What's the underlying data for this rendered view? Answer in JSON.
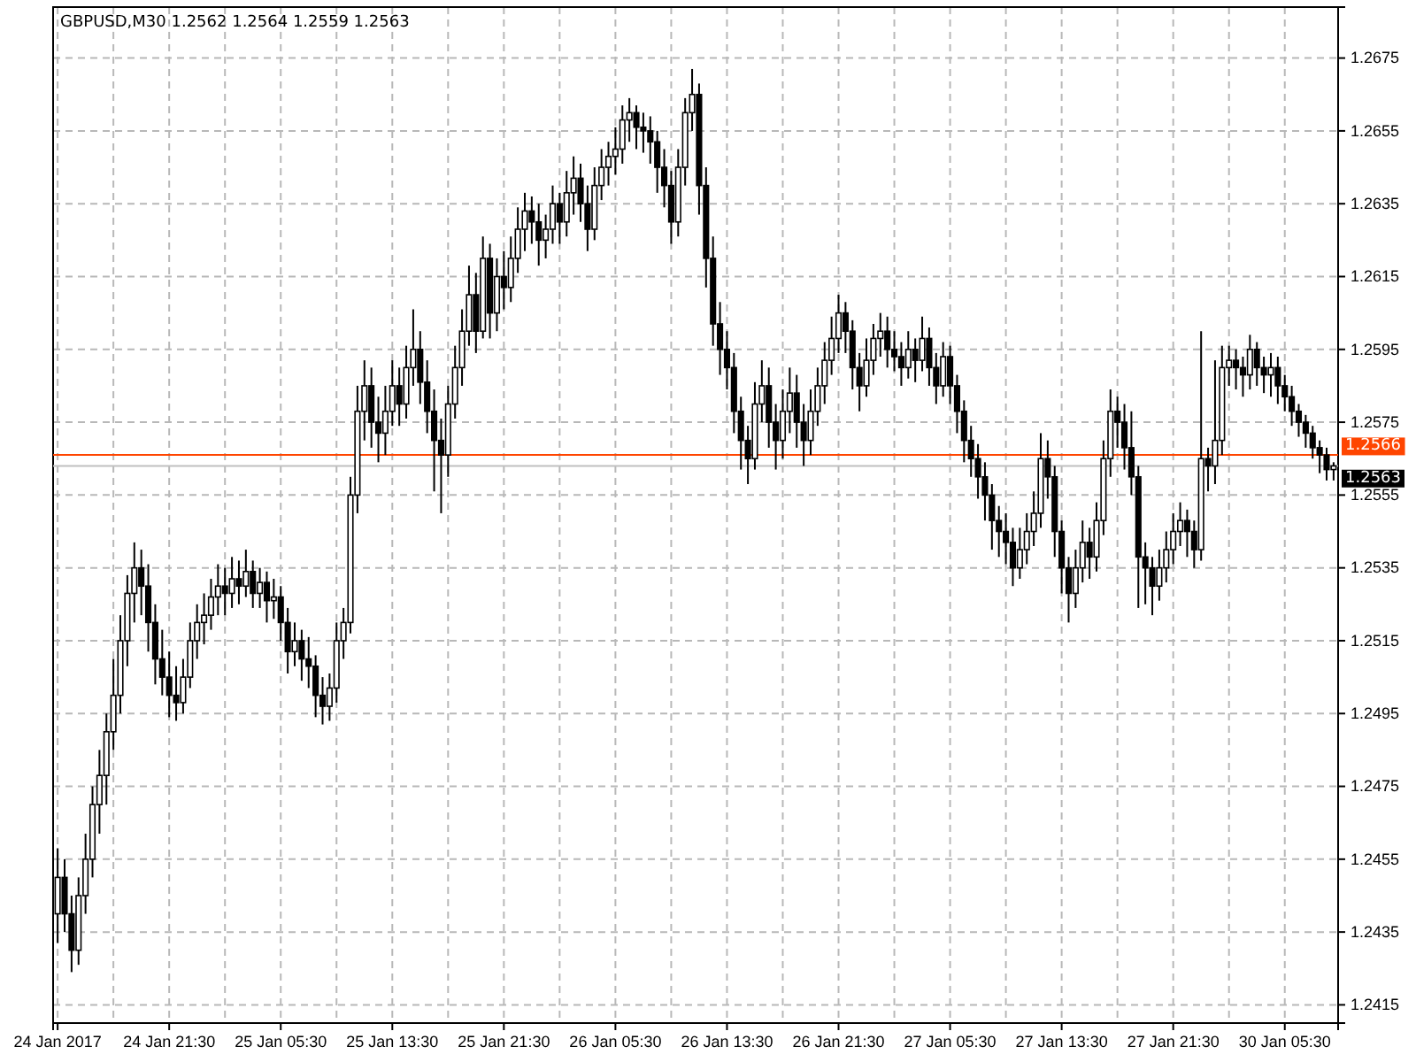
{
  "chart_data": {
    "type": "candlestick",
    "title": "GBPUSD,M30  1.2562 1.2564 1.2559 1.2563",
    "categories": [
      "24 Jan 2017",
      null,
      null,
      null,
      null,
      null,
      null,
      null,
      null,
      null,
      null,
      null,
      null,
      null,
      null,
      null,
      "24 Jan 21:30",
      null,
      null,
      null,
      null,
      null,
      null,
      null,
      null,
      null,
      null,
      null,
      null,
      null,
      null,
      null,
      "25 Jan 05:30",
      null,
      null,
      null,
      null,
      null,
      null,
      null,
      null,
      null,
      null,
      null,
      null,
      null,
      null,
      null,
      "25 Jan 13:30",
      null,
      null,
      null,
      null,
      null,
      null,
      null,
      null,
      null,
      null,
      null,
      null,
      null,
      null,
      null,
      "25 Jan 21:30",
      null,
      null,
      null,
      null,
      null,
      null,
      null,
      null,
      null,
      null,
      null,
      null,
      null,
      null,
      null,
      "26 Jan 05:30",
      null,
      null,
      null,
      null,
      null,
      null,
      null,
      null,
      null,
      null,
      null,
      null,
      null,
      null,
      null,
      "26 Jan 13:30",
      null,
      null,
      null,
      null,
      null,
      null,
      null,
      null,
      null,
      null,
      null,
      null,
      null,
      null,
      null,
      "26 Jan 21:30",
      null,
      null,
      null,
      null,
      null,
      null,
      null,
      null,
      null,
      null,
      null,
      null,
      null,
      null,
      null,
      "27 Jan 05:30",
      null,
      null,
      null,
      null,
      null,
      null,
      null,
      null,
      null,
      null,
      null,
      null,
      null,
      null,
      null,
      "27 Jan 13:30",
      null,
      null,
      null,
      null,
      null,
      null,
      null,
      null,
      null,
      null,
      null,
      null,
      null,
      null,
      null,
      "27 Jan 21:30",
      null,
      null,
      null,
      null,
      null,
      null,
      null,
      null,
      null,
      null,
      null,
      null,
      null,
      null,
      null,
      "30 Jan 05:30",
      null,
      null,
      null,
      null,
      null,
      null,
      null
    ],
    "ohlc": [
      [
        1.244,
        1.2458,
        1.2432,
        1.245
      ],
      [
        1.245,
        1.2455,
        1.2435,
        1.244
      ],
      [
        1.244,
        1.2445,
        1.2424,
        1.243
      ],
      [
        1.243,
        1.245,
        1.2426,
        1.2445
      ],
      [
        1.2445,
        1.2462,
        1.244,
        1.2455
      ],
      [
        1.2455,
        1.2475,
        1.245,
        1.247
      ],
      [
        1.247,
        1.2485,
        1.2462,
        1.2478
      ],
      [
        1.2478,
        1.2495,
        1.247,
        1.249
      ],
      [
        1.249,
        1.251,
        1.2485,
        1.25
      ],
      [
        1.25,
        1.2522,
        1.2495,
        1.2515
      ],
      [
        1.2515,
        1.2533,
        1.2508,
        1.2528
      ],
      [
        1.2528,
        1.2542,
        1.252,
        1.2535
      ],
      [
        1.2535,
        1.254,
        1.2522,
        1.253
      ],
      [
        1.253,
        1.2536,
        1.2512,
        1.252
      ],
      [
        1.252,
        1.2525,
        1.2503,
        1.251
      ],
      [
        1.251,
        1.2518,
        1.25,
        1.2505
      ],
      [
        1.2505,
        1.2512,
        1.2494,
        1.25
      ],
      [
        1.25,
        1.2508,
        1.2493,
        1.2498
      ],
      [
        1.2498,
        1.251,
        1.2495,
        1.2505
      ],
      [
        1.2505,
        1.252,
        1.2502,
        1.2515
      ],
      [
        1.2515,
        1.2525,
        1.251,
        1.252
      ],
      [
        1.252,
        1.2528,
        1.2514,
        1.2522
      ],
      [
        1.2522,
        1.2532,
        1.2518,
        1.2527
      ],
      [
        1.2527,
        1.2536,
        1.2522,
        1.253
      ],
      [
        1.253,
        1.2535,
        1.2522,
        1.2528
      ],
      [
        1.2528,
        1.2538,
        1.2524,
        1.2532
      ],
      [
        1.2532,
        1.2537,
        1.2525,
        1.253
      ],
      [
        1.253,
        1.254,
        1.2527,
        1.2534
      ],
      [
        1.2534,
        1.2537,
        1.2524,
        1.2528
      ],
      [
        1.2528,
        1.2535,
        1.2524,
        1.2531
      ],
      [
        1.2531,
        1.2534,
        1.252,
        1.2526
      ],
      [
        1.2526,
        1.2532,
        1.2521,
        1.2527
      ],
      [
        1.2527,
        1.253,
        1.2515,
        1.252
      ],
      [
        1.252,
        1.2524,
        1.2506,
        1.2512
      ],
      [
        1.2512,
        1.252,
        1.2508,
        1.2515
      ],
      [
        1.2515,
        1.2518,
        1.2504,
        1.251
      ],
      [
        1.251,
        1.2516,
        1.2502,
        1.2508
      ],
      [
        1.2508,
        1.2511,
        1.2494,
        1.25
      ],
      [
        1.25,
        1.2505,
        1.2492,
        1.2497
      ],
      [
        1.2497,
        1.2506,
        1.2493,
        1.2502
      ],
      [
        1.2502,
        1.252,
        1.2498,
        1.2515
      ],
      [
        1.2515,
        1.2524,
        1.251,
        1.252
      ],
      [
        1.252,
        1.256,
        1.2517,
        1.2555
      ],
      [
        1.2555,
        1.2585,
        1.255,
        1.2578
      ],
      [
        1.2578,
        1.2592,
        1.257,
        1.2585
      ],
      [
        1.2585,
        1.259,
        1.2568,
        1.2575
      ],
      [
        1.2575,
        1.2582,
        1.2564,
        1.2572
      ],
      [
        1.2572,
        1.2585,
        1.2566,
        1.2578
      ],
      [
        1.2578,
        1.2592,
        1.2574,
        1.2585
      ],
      [
        1.2585,
        1.259,
        1.2574,
        1.258
      ],
      [
        1.258,
        1.2596,
        1.2576,
        1.259
      ],
      [
        1.259,
        1.2606,
        1.2585,
        1.2595
      ],
      [
        1.2595,
        1.26,
        1.258,
        1.2586
      ],
      [
        1.2586,
        1.2592,
        1.2572,
        1.2578
      ],
      [
        1.2578,
        1.2584,
        1.2556,
        1.257
      ],
      [
        1.257,
        1.2576,
        1.255,
        1.2566
      ],
      [
        1.2566,
        1.2585,
        1.256,
        1.258
      ],
      [
        1.258,
        1.2596,
        1.2576,
        1.259
      ],
      [
        1.259,
        1.2606,
        1.2585,
        1.26
      ],
      [
        1.26,
        1.2618,
        1.2596,
        1.261
      ],
      [
        1.261,
        1.2616,
        1.2594,
        1.26
      ],
      [
        1.26,
        1.2626,
        1.2598,
        1.262
      ],
      [
        1.262,
        1.2624,
        1.2598,
        1.2605
      ],
      [
        1.2605,
        1.262,
        1.26,
        1.2615
      ],
      [
        1.2615,
        1.2622,
        1.2606,
        1.2612
      ],
      [
        1.2612,
        1.2626,
        1.2608,
        1.262
      ],
      [
        1.262,
        1.2634,
        1.2616,
        1.2628
      ],
      [
        1.2628,
        1.2638,
        1.2622,
        1.2633
      ],
      [
        1.2633,
        1.2637,
        1.2624,
        1.263
      ],
      [
        1.263,
        1.2635,
        1.2618,
        1.2625
      ],
      [
        1.2625,
        1.2632,
        1.262,
        1.2628
      ],
      [
        1.2628,
        1.264,
        1.2624,
        1.2635
      ],
      [
        1.2635,
        1.2638,
        1.2624,
        1.263
      ],
      [
        1.263,
        1.2644,
        1.2626,
        1.2638
      ],
      [
        1.2638,
        1.2648,
        1.2632,
        1.2642
      ],
      [
        1.2642,
        1.2646,
        1.263,
        1.2635
      ],
      [
        1.2635,
        1.264,
        1.2622,
        1.2628
      ],
      [
        1.2628,
        1.2645,
        1.2625,
        1.264
      ],
      [
        1.264,
        1.265,
        1.2636,
        1.2645
      ],
      [
        1.2645,
        1.2652,
        1.264,
        1.2648
      ],
      [
        1.2648,
        1.2656,
        1.2643,
        1.265
      ],
      [
        1.265,
        1.2662,
        1.2646,
        1.2658
      ],
      [
        1.2658,
        1.2664,
        1.2652,
        1.266
      ],
      [
        1.266,
        1.2662,
        1.265,
        1.2656
      ],
      [
        1.2656,
        1.266,
        1.2649,
        1.2655
      ],
      [
        1.2655,
        1.2659,
        1.2646,
        1.2652
      ],
      [
        1.2652,
        1.2655,
        1.2638,
        1.2645
      ],
      [
        1.2645,
        1.265,
        1.2634,
        1.264
      ],
      [
        1.264,
        1.2644,
        1.2624,
        1.263
      ],
      [
        1.263,
        1.265,
        1.2626,
        1.2645
      ],
      [
        1.2645,
        1.2664,
        1.264,
        1.266
      ],
      [
        1.266,
        1.2672,
        1.2655,
        1.2665
      ],
      [
        1.2665,
        1.2668,
        1.2632,
        1.264
      ],
      [
        1.264,
        1.2645,
        1.2612,
        1.262
      ],
      [
        1.262,
        1.2626,
        1.2596,
        1.2602
      ],
      [
        1.2602,
        1.2608,
        1.2588,
        1.2595
      ],
      [
        1.2595,
        1.26,
        1.2584,
        1.259
      ],
      [
        1.259,
        1.2594,
        1.2572,
        1.2578
      ],
      [
        1.2578,
        1.2582,
        1.2562,
        1.257
      ],
      [
        1.257,
        1.2574,
        1.2558,
        1.2565
      ],
      [
        1.2565,
        1.2586,
        1.2562,
        1.258
      ],
      [
        1.258,
        1.2592,
        1.2575,
        1.2585
      ],
      [
        1.2585,
        1.259,
        1.2568,
        1.2575
      ],
      [
        1.2575,
        1.258,
        1.2562,
        1.257
      ],
      [
        1.257,
        1.2584,
        1.2565,
        1.2578
      ],
      [
        1.2578,
        1.259,
        1.2572,
        1.2583
      ],
      [
        1.2583,
        1.2588,
        1.2568,
        1.2575
      ],
      [
        1.2575,
        1.258,
        1.2563,
        1.257
      ],
      [
        1.257,
        1.2584,
        1.2566,
        1.2578
      ],
      [
        1.2578,
        1.259,
        1.2574,
        1.2585
      ],
      [
        1.2585,
        1.2597,
        1.258,
        1.2592
      ],
      [
        1.2592,
        1.2604,
        1.2588,
        1.2598
      ],
      [
        1.2598,
        1.261,
        1.2594,
        1.2605
      ],
      [
        1.2605,
        1.2608,
        1.2594,
        1.26
      ],
      [
        1.26,
        1.2603,
        1.2584,
        1.259
      ],
      [
        1.259,
        1.2594,
        1.2578,
        1.2585
      ],
      [
        1.2585,
        1.2598,
        1.2582,
        1.2592
      ],
      [
        1.2592,
        1.2602,
        1.2588,
        1.2598
      ],
      [
        1.2598,
        1.2605,
        1.2593,
        1.26
      ],
      [
        1.26,
        1.2604,
        1.259,
        1.2595
      ],
      [
        1.2595,
        1.26,
        1.2589,
        1.2593
      ],
      [
        1.2593,
        1.2597,
        1.2585,
        1.259
      ],
      [
        1.259,
        1.26,
        1.2587,
        1.2595
      ],
      [
        1.2595,
        1.2598,
        1.2586,
        1.2592
      ],
      [
        1.2592,
        1.2604,
        1.2589,
        1.2598
      ],
      [
        1.2598,
        1.2601,
        1.2585,
        1.259
      ],
      [
        1.259,
        1.2594,
        1.258,
        1.2585
      ],
      [
        1.2585,
        1.2597,
        1.2582,
        1.2593
      ],
      [
        1.2593,
        1.2596,
        1.258,
        1.2585
      ],
      [
        1.2585,
        1.2588,
        1.2572,
        1.2578
      ],
      [
        1.2578,
        1.2581,
        1.2564,
        1.257
      ],
      [
        1.257,
        1.2574,
        1.256,
        1.2565
      ],
      [
        1.2565,
        1.2569,
        1.2554,
        1.256
      ],
      [
        1.256,
        1.2564,
        1.2548,
        1.2555
      ],
      [
        1.2555,
        1.2558,
        1.254,
        1.2548
      ],
      [
        1.2548,
        1.2552,
        1.2538,
        1.2545
      ],
      [
        1.2545,
        1.255,
        1.2536,
        1.2542
      ],
      [
        1.2542,
        1.2546,
        1.253,
        1.2535
      ],
      [
        1.2535,
        1.2546,
        1.2532,
        1.254
      ],
      [
        1.254,
        1.255,
        1.2536,
        1.2545
      ],
      [
        1.2545,
        1.2556,
        1.2541,
        1.255
      ],
      [
        1.255,
        1.2572,
        1.2546,
        1.2565
      ],
      [
        1.2565,
        1.257,
        1.2554,
        1.256
      ],
      [
        1.256,
        1.2563,
        1.2538,
        1.2545
      ],
      [
        1.2545,
        1.2548,
        1.2528,
        1.2535
      ],
      [
        1.2535,
        1.2538,
        1.252,
        1.2528
      ],
      [
        1.2528,
        1.254,
        1.2524,
        1.2535
      ],
      [
        1.2535,
        1.2548,
        1.2531,
        1.2542
      ],
      [
        1.2542,
        1.2546,
        1.2532,
        1.2538
      ],
      [
        1.2538,
        1.2553,
        1.2534,
        1.2548
      ],
      [
        1.2548,
        1.257,
        1.2544,
        1.2565
      ],
      [
        1.2565,
        1.2584,
        1.256,
        1.2578
      ],
      [
        1.2578,
        1.2582,
        1.2568,
        1.2575
      ],
      [
        1.2575,
        1.258,
        1.2562,
        1.2568
      ],
      [
        1.2568,
        1.2578,
        1.2555,
        1.256
      ],
      [
        1.256,
        1.2563,
        1.2524,
        1.2538
      ],
      [
        1.2538,
        1.2542,
        1.2525,
        1.2535
      ],
      [
        1.2535,
        1.2538,
        1.2522,
        1.253
      ],
      [
        1.253,
        1.254,
        1.2526,
        1.2535
      ],
      [
        1.2535,
        1.2545,
        1.2531,
        1.254
      ],
      [
        1.254,
        1.255,
        1.2536,
        1.2545
      ],
      [
        1.2545,
        1.2553,
        1.2541,
        1.2548
      ],
      [
        1.2548,
        1.2551,
        1.2538,
        1.2545
      ],
      [
        1.2545,
        1.2548,
        1.2535,
        1.254
      ],
      [
        1.254,
        1.26,
        1.2537,
        1.2565
      ],
      [
        1.2565,
        1.2568,
        1.2556,
        1.2563
      ],
      [
        1.2563,
        1.2592,
        1.2558,
        1.257
      ],
      [
        1.257,
        1.2596,
        1.2566,
        1.259
      ],
      [
        1.259,
        1.2596,
        1.2585,
        1.2592
      ],
      [
        1.2592,
        1.2595,
        1.2584,
        1.259
      ],
      [
        1.259,
        1.2593,
        1.2582,
        1.2588
      ],
      [
        1.2588,
        1.2599,
        1.2584,
        1.2595
      ],
      [
        1.2595,
        1.2597,
        1.2585,
        1.259
      ],
      [
        1.259,
        1.2593,
        1.2583,
        1.2588
      ],
      [
        1.2588,
        1.2594,
        1.2582,
        1.259
      ],
      [
        1.259,
        1.2593,
        1.258,
        1.2585
      ],
      [
        1.2585,
        1.2588,
        1.2578,
        1.2582
      ],
      [
        1.2582,
        1.2585,
        1.2574,
        1.2578
      ],
      [
        1.2578,
        1.258,
        1.2571,
        1.2575
      ],
      [
        1.2575,
        1.2577,
        1.2568,
        1.2572
      ],
      [
        1.2572,
        1.2574,
        1.2565,
        1.2568
      ],
      [
        1.2568,
        1.257,
        1.2561,
        1.2566
      ],
      [
        1.2566,
        1.2568,
        1.2559,
        1.2562
      ],
      [
        1.2562,
        1.2564,
        1.2559,
        1.2563
      ]
    ],
    "ylim": [
      1.241,
      1.2689
    ],
    "yticks": [
      1.2415,
      1.2435,
      1.2455,
      1.2475,
      1.2495,
      1.2515,
      1.2535,
      1.2555,
      1.2575,
      1.2595,
      1.2615,
      1.2635,
      1.2655,
      1.2675
    ],
    "grid": true,
    "ref_lines": [
      {
        "axis": "y",
        "value": 1.2566,
        "label": "1.2566",
        "color": "#ff4500"
      },
      {
        "axis": "y",
        "value": 1.2563,
        "label": "1.2563",
        "color": "#c0c0c0"
      }
    ]
  }
}
